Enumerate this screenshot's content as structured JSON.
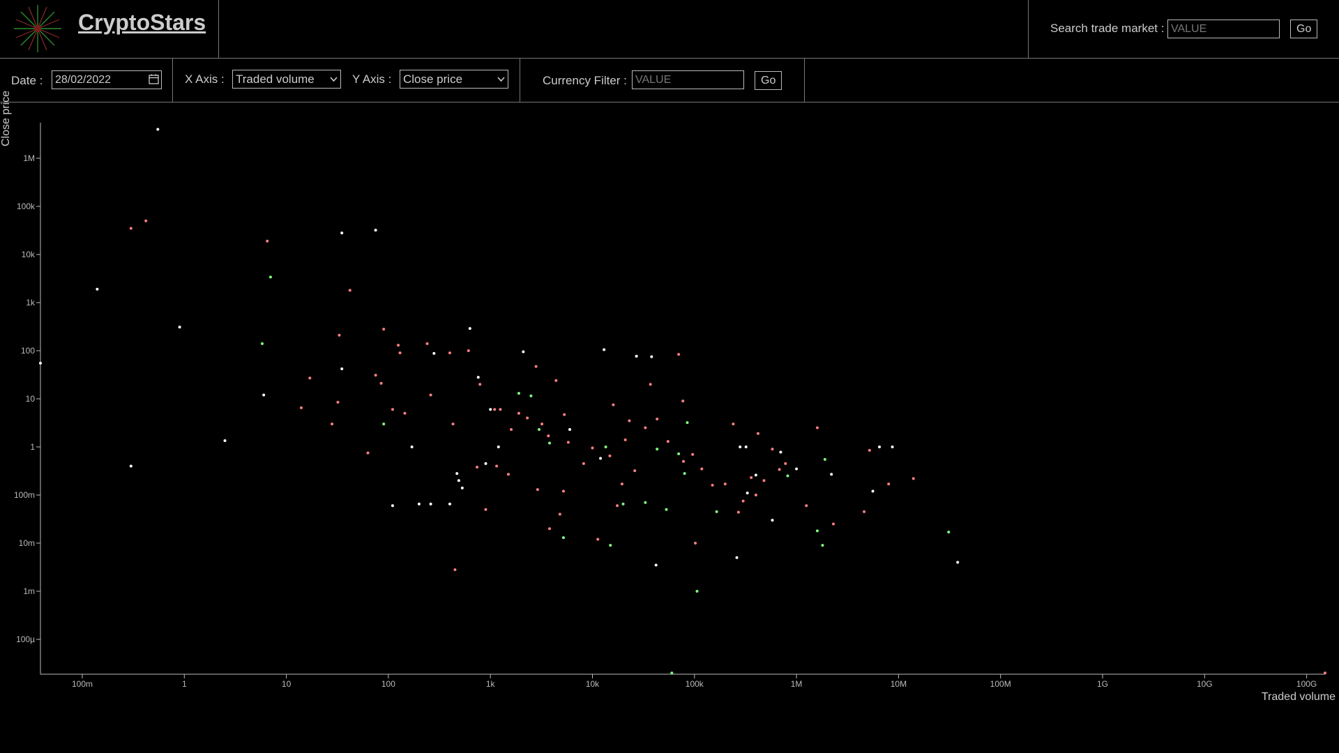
{
  "header": {
    "brand": "CryptoStars",
    "search_label": "Search trade market :",
    "search_placeholder": "VALUE",
    "search_go": "Go"
  },
  "toolbar": {
    "date_label": "Date :",
    "date_value": "28/02/2022",
    "x_axis_label": "X Axis :",
    "x_axis_selected": "Traded volume",
    "y_axis_label": "Y Axis :",
    "y_axis_selected": "Close price",
    "currency_filter_label": "Currency Filter :",
    "currency_placeholder": "VALUE",
    "currency_go": "Go"
  },
  "chart_data": {
    "type": "scatter",
    "xlabel": "Traded volume",
    "ylabel": "Close price",
    "x_scale": "log",
    "y_scale": "log",
    "xlim": [
      0.03,
      300000000000
    ],
    "ylim": [
      2e-05,
      5000000
    ],
    "x_ticks": [
      "100m",
      "1",
      "10",
      "100",
      "1k",
      "10k",
      "100k",
      "1M",
      "10M",
      "100M",
      "1G",
      "10G",
      "100G"
    ],
    "y_ticks": [
      "1M",
      "100k",
      "10k",
      "1k",
      "100",
      "10",
      "1",
      "100m",
      "10m",
      "1m",
      "100µ"
    ],
    "grid": false,
    "series": [
      {
        "color": "#ffffff",
        "points": [
          [
            0.03,
            55
          ],
          [
            0.14,
            1900
          ],
          [
            0.3,
            0.4
          ],
          [
            0.55,
            4000000
          ],
          [
            0.9,
            310
          ],
          [
            2.5,
            1.35
          ],
          [
            6,
            12
          ],
          [
            35,
            28000
          ],
          [
            35,
            42
          ],
          [
            75,
            32000
          ],
          [
            110,
            0.06
          ],
          [
            170,
            1
          ],
          [
            200,
            0.065
          ],
          [
            260,
            0.065
          ],
          [
            280,
            88
          ],
          [
            400,
            0.065
          ],
          [
            470,
            0.28
          ],
          [
            490,
            0.2
          ],
          [
            530,
            0.14
          ],
          [
            630,
            290
          ],
          [
            760,
            28
          ],
          [
            900,
            0.45
          ],
          [
            1000,
            6
          ],
          [
            1200,
            1
          ],
          [
            2100,
            95
          ],
          [
            6000,
            2.3
          ],
          [
            12000,
            0.58
          ],
          [
            13000,
            105
          ],
          [
            27000,
            77
          ],
          [
            38000,
            75
          ],
          [
            42000,
            0.0035
          ],
          [
            280000,
            1
          ],
          [
            320000,
            1
          ],
          [
            330000,
            0.11
          ],
          [
            400000,
            0.26
          ],
          [
            580000,
            0.03
          ],
          [
            700000,
            0.78
          ],
          [
            1000000,
            0.35
          ],
          [
            2200000,
            0.27
          ],
          [
            5600000,
            0.12
          ],
          [
            6500000,
            1
          ],
          [
            8700000,
            1
          ],
          [
            38000000,
            0.004
          ],
          [
            260000,
            0.005
          ]
        ]
      },
      {
        "color": "#ff7f7f",
        "points": [
          [
            0.3,
            35000
          ],
          [
            0.42,
            50000
          ],
          [
            6.5,
            19000
          ],
          [
            17,
            27
          ],
          [
            14,
            6.5
          ],
          [
            28,
            3
          ],
          [
            32,
            8.5
          ],
          [
            33,
            210
          ],
          [
            42,
            1800
          ],
          [
            63,
            0.75
          ],
          [
            75,
            31
          ],
          [
            85,
            21
          ],
          [
            90,
            280
          ],
          [
            110,
            6
          ],
          [
            125,
            130
          ],
          [
            130,
            90
          ],
          [
            145,
            5
          ],
          [
            240,
            140
          ],
          [
            260,
            12
          ],
          [
            400,
            90
          ],
          [
            430,
            3
          ],
          [
            450,
            0.0028
          ],
          [
            610,
            100
          ],
          [
            740,
            0.38
          ],
          [
            790,
            20
          ],
          [
            900,
            0.05
          ],
          [
            1100,
            6
          ],
          [
            1150,
            0.4
          ],
          [
            1250,
            6
          ],
          [
            1500,
            0.27
          ],
          [
            1600,
            2.3
          ],
          [
            1900,
            5
          ],
          [
            2300,
            4
          ],
          [
            2800,
            47
          ],
          [
            2900,
            0.13
          ],
          [
            3200,
            3
          ],
          [
            3700,
            1.7
          ],
          [
            3800,
            0.02
          ],
          [
            4400,
            24
          ],
          [
            4800,
            0.04
          ],
          [
            5200,
            0.12
          ],
          [
            5300,
            4.7
          ],
          [
            5800,
            1.25
          ],
          [
            8200,
            0.45
          ],
          [
            10000,
            0.95
          ],
          [
            11300,
            0.012
          ],
          [
            14800,
            0.65
          ],
          [
            16000,
            7.5
          ],
          [
            17500,
            0.06
          ],
          [
            19500,
            0.17
          ],
          [
            21000,
            1.4
          ],
          [
            23000,
            3.5
          ],
          [
            26000,
            0.32
          ],
          [
            33000,
            2.5
          ],
          [
            37000,
            20
          ],
          [
            43000,
            3.8
          ],
          [
            55000,
            1.3
          ],
          [
            70000,
            84
          ],
          [
            77000,
            9
          ],
          [
            78000,
            0.5
          ],
          [
            96000,
            0.7
          ],
          [
            102000,
            0.01
          ],
          [
            118000,
            0.35
          ],
          [
            150000,
            0.16
          ],
          [
            200000,
            0.17
          ],
          [
            240000,
            3
          ],
          [
            270000,
            0.044
          ],
          [
            300000,
            0.075
          ],
          [
            360000,
            0.23
          ],
          [
            400000,
            0.1
          ],
          [
            420000,
            1.9
          ],
          [
            480000,
            0.2
          ],
          [
            580000,
            0.9
          ],
          [
            680000,
            0.34
          ],
          [
            780000,
            0.45
          ],
          [
            1250000,
            0.06
          ],
          [
            1600000,
            2.5
          ],
          [
            2300000,
            0.025
          ],
          [
            4600000,
            0.045
          ],
          [
            5200000,
            0.85
          ],
          [
            8000000,
            0.17
          ],
          [
            14000000,
            0.22
          ],
          [
            260000000000,
            2e-05
          ]
        ]
      },
      {
        "color": "#7fff7f",
        "points": [
          [
            7,
            3400
          ],
          [
            5.8,
            140
          ],
          [
            90,
            3
          ],
          [
            1900,
            13
          ],
          [
            2500,
            11.5
          ],
          [
            3000,
            2.3
          ],
          [
            3800,
            1.2
          ],
          [
            5200,
            0.013
          ],
          [
            13500,
            1
          ],
          [
            15000,
            0.009
          ],
          [
            20000,
            0.065
          ],
          [
            33000,
            0.07
          ],
          [
            43000,
            0.9
          ],
          [
            53000,
            0.05
          ],
          [
            60000,
            2e-05
          ],
          [
            70000,
            0.72
          ],
          [
            80000,
            0.28
          ],
          [
            85000,
            3.2
          ],
          [
            106000,
            0.001
          ],
          [
            165000,
            0.045
          ],
          [
            820000,
            0.25
          ],
          [
            1600000,
            0.018
          ],
          [
            1800000,
            0.009
          ],
          [
            1900000,
            0.55
          ],
          [
            31000000,
            0.017
          ]
        ]
      }
    ]
  }
}
